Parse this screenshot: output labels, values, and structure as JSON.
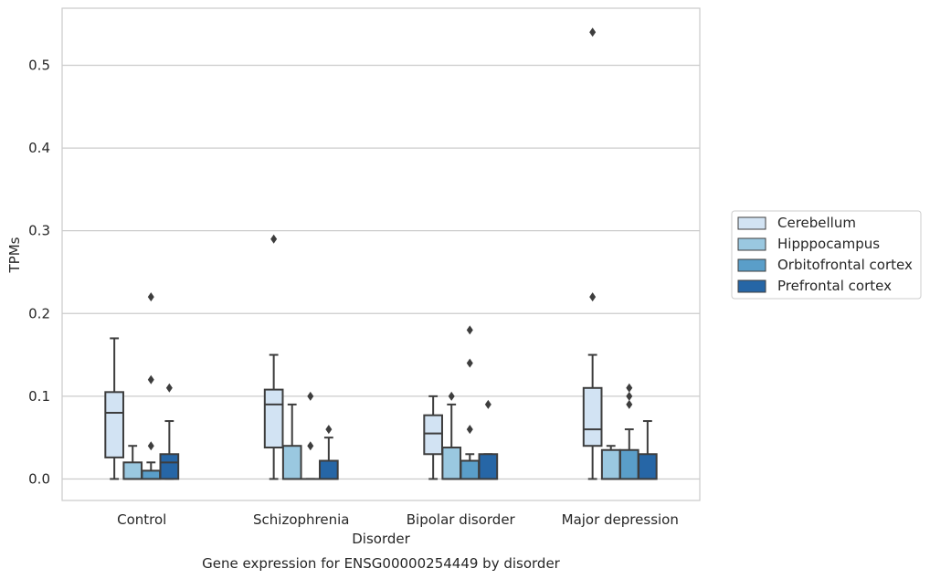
{
  "chart_data": {
    "type": "box",
    "title": "Gene expression for ENSG00000254449 by disorder",
    "xlabel": "Disorder",
    "ylabel": "TPMs",
    "categories": [
      "Control",
      "Schizophrenia",
      "Bipolar disorder",
      "Major depression"
    ],
    "ylim": [
      -0.026,
      0.569
    ],
    "yticks": [
      "0.0",
      "0.1",
      "0.2",
      "0.3",
      "0.4",
      "0.5"
    ],
    "ytick_values": [
      0.0,
      0.1,
      0.2,
      0.3,
      0.4,
      0.5
    ],
    "grid": "horizontal",
    "legend_position": "right",
    "series": [
      {
        "name": "Cerebellum",
        "color": "#d2e3f3",
        "boxes": [
          {
            "whislo": 0.0,
            "q1": 0.026,
            "med": 0.08,
            "q3": 0.105,
            "whishi": 0.17,
            "fliers": []
          },
          {
            "whislo": 0.0,
            "q1": 0.038,
            "med": 0.09,
            "q3": 0.108,
            "whishi": 0.15,
            "fliers": [
              0.29
            ]
          },
          {
            "whislo": 0.0,
            "q1": 0.03,
            "med": 0.055,
            "q3": 0.077,
            "whishi": 0.1,
            "fliers": []
          },
          {
            "whislo": 0.0,
            "q1": 0.04,
            "med": 0.06,
            "q3": 0.11,
            "whishi": 0.15,
            "fliers": [
              0.22,
              0.54
            ]
          }
        ]
      },
      {
        "name": "Hipppocampus",
        "color": "#9ac8e0",
        "boxes": [
          {
            "whislo": 0.0,
            "q1": 0.0,
            "med": 0.0,
            "q3": 0.02,
            "whishi": 0.04,
            "fliers": []
          },
          {
            "whislo": 0.0,
            "q1": 0.0,
            "med": 0.0,
            "q3": 0.04,
            "whishi": 0.09,
            "fliers": []
          },
          {
            "whislo": 0.0,
            "q1": 0.0,
            "med": 0.0,
            "q3": 0.038,
            "whishi": 0.09,
            "fliers": [
              0.1
            ]
          },
          {
            "whislo": 0.0,
            "q1": 0.0,
            "med": 0.0,
            "q3": 0.035,
            "whishi": 0.04,
            "fliers": []
          }
        ]
      },
      {
        "name": "Orbitofrontal cortex",
        "color": "#5a9ec9",
        "boxes": [
          {
            "whislo": 0.0,
            "q1": 0.0,
            "med": 0.0,
            "q3": 0.01,
            "whishi": 0.02,
            "fliers": [
              0.04,
              0.12,
              0.22
            ]
          },
          {
            "whislo": 0.0,
            "q1": 0.0,
            "med": 0.0,
            "q3": 0.0,
            "whishi": 0.0,
            "fliers": [
              0.04,
              0.1
            ]
          },
          {
            "whislo": 0.0,
            "q1": 0.0,
            "med": 0.0,
            "q3": 0.022,
            "whishi": 0.03,
            "fliers": [
              0.06,
              0.14,
              0.18
            ]
          },
          {
            "whislo": 0.0,
            "q1": 0.0,
            "med": 0.0,
            "q3": 0.035,
            "whishi": 0.06,
            "fliers": [
              0.09,
              0.1,
              0.11
            ]
          }
        ]
      },
      {
        "name": "Prefrontal cortex",
        "color": "#2666a6",
        "boxes": [
          {
            "whislo": 0.0,
            "q1": 0.0,
            "med": 0.02,
            "q3": 0.03,
            "whishi": 0.07,
            "fliers": [
              0.11
            ]
          },
          {
            "whislo": 0.0,
            "q1": 0.0,
            "med": 0.0,
            "q3": 0.022,
            "whishi": 0.05,
            "fliers": [
              0.06
            ]
          },
          {
            "whislo": 0.0,
            "q1": 0.0,
            "med": 0.0,
            "q3": 0.03,
            "whishi": 0.03,
            "fliers": [
              0.09
            ]
          },
          {
            "whislo": 0.0,
            "q1": 0.0,
            "med": 0.0,
            "q3": 0.03,
            "whishi": 0.07,
            "fliers": []
          }
        ]
      }
    ]
  },
  "colors": {
    "grid": "#cccccc",
    "spine": "#cccccc",
    "box_edge": "#3d3d3d",
    "legend_border": "#cccccc"
  }
}
